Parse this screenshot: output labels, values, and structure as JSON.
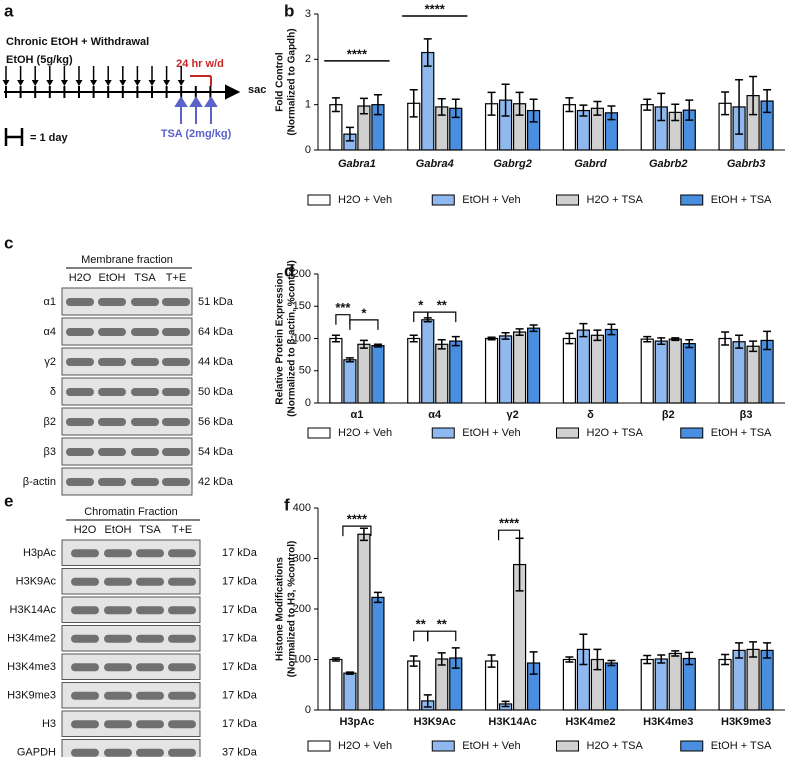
{
  "panel_a": {
    "label": "a",
    "title": "Chronic EtOH + Withdrawal",
    "dose": "EtOH (5g/kg)",
    "withdrawal": "24 hr w/d",
    "end": "sac",
    "scale": "= 1 day",
    "treatment": "TSA (2mg/kg)"
  },
  "panel_c": {
    "label": "c",
    "header": "Membrane fraction",
    "lanes": [
      "H2O",
      "EtOH",
      "TSA",
      "T+E"
    ],
    "rows": [
      {
        "name": "α1",
        "size": "51 kDa"
      },
      {
        "name": "α4",
        "size": "64 kDa"
      },
      {
        "name": "γ2",
        "size": "44 kDa"
      },
      {
        "name": "δ",
        "size": "50 kDa"
      },
      {
        "name": "β2",
        "size": "56 kDa"
      },
      {
        "name": "β3",
        "size": "54 kDa"
      },
      {
        "name": "β-actin",
        "size": "42 kDa"
      }
    ]
  },
  "panel_e": {
    "label": "e",
    "header": "Chromatin Fraction",
    "lanes": [
      "H2O",
      "EtOH",
      "TSA",
      "T+E"
    ],
    "rows": [
      {
        "name": "H3pAc",
        "size": "17 kDa"
      },
      {
        "name": "H3K9Ac",
        "size": "17 kDa"
      },
      {
        "name": "H3K14Ac",
        "size": "17 kDa"
      },
      {
        "name": "H3K4me2",
        "size": "17 kDa"
      },
      {
        "name": "H3K4me3",
        "size": "17 kDa"
      },
      {
        "name": "H3K9me3",
        "size": "17 kDa"
      },
      {
        "name": "H3",
        "size": "17 kDa"
      },
      {
        "name": "GAPDH",
        "size": "37 kDa"
      }
    ]
  },
  "chart_data": [
    {
      "type": "bar",
      "label": "b",
      "ylabel": [
        "Fold Control",
        "(Normalized to Gapdh)"
      ],
      "category_style": "italic",
      "legend": "bottom",
      "categories": [
        "Gabra1",
        "Gabra4",
        "Gabrg2",
        "Gabrd",
        "Gabrb2",
        "Gabrb3"
      ],
      "ylim": [
        0,
        3
      ],
      "yticks": [
        0,
        1,
        2,
        3
      ],
      "series": [
        {
          "name": "H2O + Veh",
          "color": "#ffffff",
          "values": [
            1.0,
            1.03,
            1.02,
            1.0,
            1.0,
            1.03
          ],
          "errors": [
            0.15,
            0.3,
            0.25,
            0.15,
            0.12,
            0.25
          ]
        },
        {
          "name": "EtOH + Veh",
          "color": "#8fb8ee",
          "values": [
            0.35,
            2.15,
            1.1,
            0.87,
            0.95,
            0.95
          ],
          "errors": [
            0.15,
            0.3,
            0.35,
            0.12,
            0.3,
            0.6
          ]
        },
        {
          "name": "H2O + TSA",
          "color": "#d0d0d0",
          "values": [
            0.97,
            0.95,
            1.02,
            0.92,
            0.83,
            1.2
          ],
          "errors": [
            0.17,
            0.18,
            0.25,
            0.15,
            0.18,
            0.42
          ]
        },
        {
          "name": "EtOH + TSA",
          "color": "#4a8ee0",
          "values": [
            1.0,
            0.92,
            0.87,
            0.82,
            0.88,
            1.08
          ],
          "errors": [
            0.22,
            0.2,
            0.25,
            0.15,
            0.22,
            0.25
          ]
        }
      ],
      "annotations": [
        "****",
        "****"
      ]
    },
    {
      "type": "bar",
      "label": "d",
      "ylabel": [
        "Relative Protein Expression",
        "(Normalized to β-actin, %control)"
      ],
      "legend": "bottom",
      "categories": [
        "α1",
        "α4",
        "γ2",
        "δ",
        "β2",
        "β3"
      ],
      "ylim": [
        0,
        200
      ],
      "yticks": [
        0,
        50,
        100,
        150,
        200
      ],
      "series": [
        {
          "name": "H2O + Veh",
          "color": "#ffffff",
          "values": [
            100,
            100,
            100,
            100,
            99,
            100
          ],
          "errors": [
            5,
            5,
            2,
            8,
            4,
            10
          ]
        },
        {
          "name": "EtOH + Veh",
          "color": "#8fb8ee",
          "values": [
            67,
            129,
            104,
            113,
            96,
            95
          ],
          "errors": [
            3,
            3,
            5,
            10,
            5,
            10
          ]
        },
        {
          "name": "H2O + TSA",
          "color": "#d0d0d0",
          "values": [
            91,
            91,
            110,
            105,
            99,
            88
          ],
          "errors": [
            6,
            7,
            5,
            8,
            2,
            8
          ]
        },
        {
          "name": "EtOH + TSA",
          "color": "#4a8ee0",
          "values": [
            89,
            96,
            116,
            114,
            92,
            97
          ],
          "errors": [
            2,
            7,
            5,
            8,
            6,
            14
          ]
        }
      ],
      "annotations": [
        "***",
        "*",
        "*",
        "**"
      ]
    },
    {
      "type": "bar",
      "label": "f",
      "ylabel": [
        "Histone Modifications",
        "(Normalized to H3, %control)"
      ],
      "legend": "bottom",
      "categories": [
        "H3pAc",
        "H3K9Ac",
        "H3K14Ac",
        "H3K4me2",
        "H3K4me3",
        "H3K9me3"
      ],
      "ylim": [
        0,
        400
      ],
      "yticks": [
        0,
        100,
        200,
        300,
        400
      ],
      "series": [
        {
          "name": "H2O + Veh",
          "color": "#ffffff",
          "values": [
            100,
            97,
            97,
            100,
            100,
            100
          ],
          "errors": [
            3,
            10,
            12,
            5,
            8,
            10
          ]
        },
        {
          "name": "EtOH + Veh",
          "color": "#8fb8ee",
          "values": [
            73,
            18,
            12,
            120,
            101,
            118
          ],
          "errors": [
            2,
            12,
            5,
            30,
            8,
            15
          ]
        },
        {
          "name": "H2O + TSA",
          "color": "#d0d0d0",
          "values": [
            348,
            101,
            288,
            100,
            112,
            120
          ],
          "errors": [
            12,
            12,
            52,
            20,
            5,
            15
          ]
        },
        {
          "name": "EtOH + TSA",
          "color": "#4a8ee0",
          "values": [
            223,
            103,
            93,
            93,
            102,
            118
          ],
          "errors": [
            10,
            20,
            22,
            5,
            12,
            15
          ]
        }
      ],
      "annotations": [
        "****",
        "**",
        "**",
        "****"
      ]
    }
  ]
}
